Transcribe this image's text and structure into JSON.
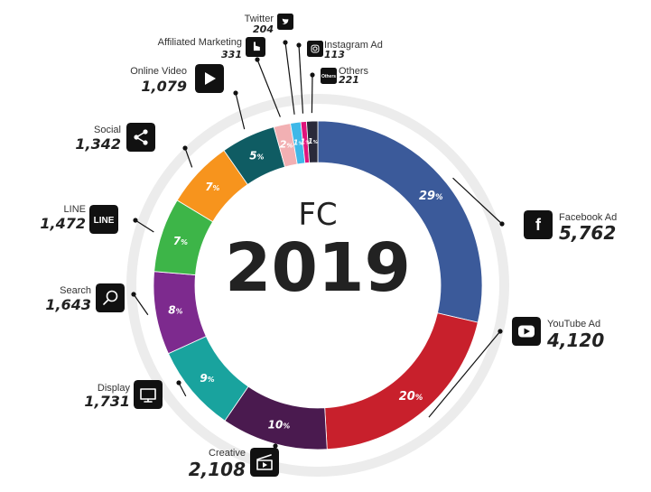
{
  "chart_data": {
    "type": "pie",
    "title": "FC",
    "subtitle": "2019",
    "slices": [
      {
        "name": "Facebook Ad",
        "value": 5762,
        "value_label": "5,762",
        "percent": "29",
        "color": "#3b5a9a",
        "icon": "facebook-icon"
      },
      {
        "name": "YouTube Ad",
        "value": 4120,
        "value_label": "4,120",
        "percent": "20",
        "color": "#c8202c",
        "icon": "youtube-icon"
      },
      {
        "name": "Creative",
        "value": 2108,
        "value_label": "2,108",
        "percent": "10",
        "color": "#4a1a4f",
        "icon": "clapperboard-icon"
      },
      {
        "name": "Display",
        "value": 1731,
        "value_label": "1,731",
        "percent": "9",
        "color": "#19a39e",
        "icon": "monitor-icon"
      },
      {
        "name": "Search",
        "value": 1643,
        "value_label": "1,643",
        "percent": "8",
        "color": "#7d2a8e",
        "icon": "search-icon"
      },
      {
        "name": "LINE",
        "value": 1472,
        "value_label": "1,472",
        "percent": "7",
        "color": "#3db548",
        "icon": "line-icon"
      },
      {
        "name": "Social",
        "value": 1342,
        "value_label": "1,342",
        "percent": "7",
        "color": "#f7941d",
        "icon": "share-icon"
      },
      {
        "name": "Online Video",
        "value": 1079,
        "value_label": "1,079",
        "percent": "5",
        "color": "#0f5c63",
        "icon": "play-icon"
      },
      {
        "name": "Affiliated Marketing",
        "value": 331,
        "value_label": "331",
        "percent": "2",
        "color": "#f2b0b3",
        "icon": "pointer-icon"
      },
      {
        "name": "Twitter",
        "value": 204,
        "value_label": "204",
        "percent": "1",
        "color": "#3fb8e8",
        "icon": "twitter-icon"
      },
      {
        "name": "Instagram Ad",
        "value": 113,
        "value_label": "113",
        "percent": "1",
        "color": "#e0137b",
        "icon": "instagram-icon"
      },
      {
        "name": "Others",
        "value": 221,
        "value_label": "221",
        "percent": "1",
        "color": "#2a2a3a",
        "icon": "others-icon",
        "icon_text": "Others"
      }
    ],
    "percent_unit": "%",
    "legend_placement": "around"
  },
  "icon_badges": {
    "line_text": "LINE"
  }
}
